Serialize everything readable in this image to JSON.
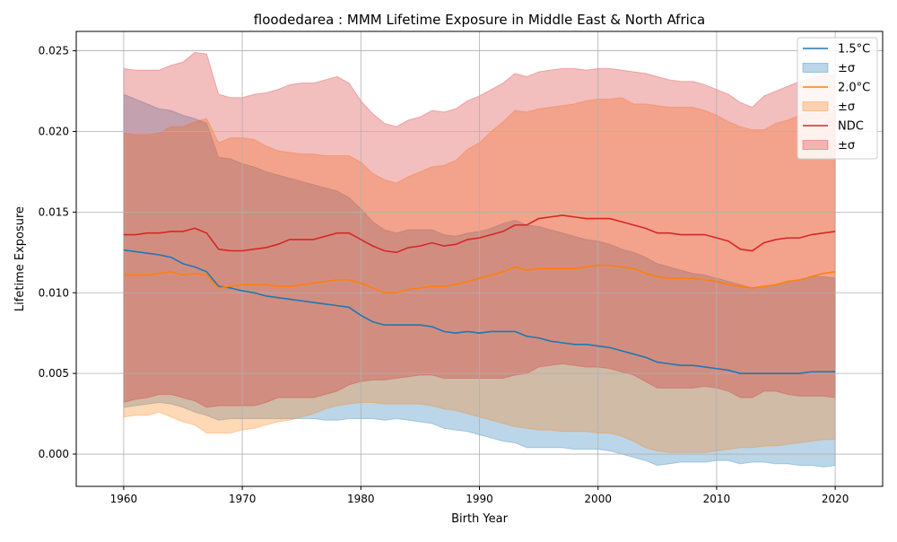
{
  "chart_data": {
    "type": "line",
    "title": "floodedarea : MMM Lifetime Exposure in Middle East & North Africa",
    "xlabel": "Birth Year",
    "ylabel": "Lifetime Exposure",
    "xlim": [
      1956,
      2024
    ],
    "ylim": [
      -0.002,
      0.0262
    ],
    "x_ticks": [
      1960,
      1970,
      1980,
      1990,
      2000,
      2010,
      2020
    ],
    "y_ticks": [
      0.0,
      0.005,
      0.01,
      0.015,
      0.02,
      0.025
    ],
    "y_tick_labels": [
      "0.000",
      "0.005",
      "0.010",
      "0.015",
      "0.020",
      "0.025"
    ],
    "grid": true,
    "legend_position": "top-right",
    "x": [
      1960,
      1961,
      1962,
      1963,
      1964,
      1965,
      1966,
      1967,
      1968,
      1969,
      1970,
      1971,
      1972,
      1973,
      1974,
      1975,
      1976,
      1977,
      1978,
      1979,
      1980,
      1981,
      1982,
      1983,
      1984,
      1985,
      1986,
      1987,
      1988,
      1989,
      1990,
      1991,
      1992,
      1993,
      1994,
      1995,
      1996,
      1997,
      1998,
      1999,
      2000,
      2001,
      2002,
      2003,
      2004,
      2005,
      2006,
      2007,
      2008,
      2009,
      2010,
      2011,
      2012,
      2013,
      2014,
      2015,
      2016,
      2017,
      2018,
      2019,
      2020
    ],
    "series": [
      {
        "name": "1.5°C",
        "band_label": "±σ",
        "color": "#1f77b4",
        "band_color": "#1f77b4",
        "values": [
          0.01265,
          0.01255,
          0.01245,
          0.01235,
          0.0122,
          0.0118,
          0.0116,
          0.0113,
          0.0104,
          0.0103,
          0.01012,
          0.01,
          0.0098,
          0.0097,
          0.0096,
          0.0095,
          0.0094,
          0.0093,
          0.0092,
          0.0091,
          0.0086,
          0.0082,
          0.008,
          0.008,
          0.008,
          0.008,
          0.0079,
          0.0076,
          0.0075,
          0.0076,
          0.0075,
          0.0076,
          0.0076,
          0.0076,
          0.0073,
          0.0072,
          0.007,
          0.0069,
          0.0068,
          0.0068,
          0.0067,
          0.0066,
          0.0064,
          0.0062,
          0.006,
          0.0057,
          0.0056,
          0.0055,
          0.0055,
          0.0054,
          0.0053,
          0.0052,
          0.005,
          0.005,
          0.005,
          0.005,
          0.005,
          0.005,
          0.0051,
          0.0051,
          0.0051
        ],
        "upper": [
          0.0223,
          0.022,
          0.0217,
          0.0214,
          0.0213,
          0.021,
          0.0208,
          0.0205,
          0.0184,
          0.0183,
          0.018,
          0.0178,
          0.0175,
          0.0173,
          0.0171,
          0.0169,
          0.0167,
          0.0165,
          0.0163,
          0.0159,
          0.0152,
          0.0144,
          0.0139,
          0.0137,
          0.0139,
          0.0139,
          0.0139,
          0.0136,
          0.0135,
          0.0137,
          0.0138,
          0.014,
          0.0143,
          0.0145,
          0.0142,
          0.0141,
          0.0139,
          0.0137,
          0.0135,
          0.0133,
          0.0132,
          0.013,
          0.0127,
          0.0125,
          0.0122,
          0.0118,
          0.0116,
          0.0114,
          0.0112,
          0.0111,
          0.0109,
          0.0107,
          0.0105,
          0.0103,
          0.0104,
          0.0105,
          0.0107,
          0.0108,
          0.011,
          0.011,
          0.0109
        ],
        "lower": [
          0.0029,
          0.003,
          0.0031,
          0.0032,
          0.0031,
          0.0029,
          0.0026,
          0.0024,
          0.0021,
          0.0022,
          0.0022,
          0.0022,
          0.0022,
          0.0022,
          0.0022,
          0.0022,
          0.0022,
          0.0021,
          0.0021,
          0.0022,
          0.0022,
          0.0022,
          0.0021,
          0.0022,
          0.0021,
          0.002,
          0.0019,
          0.0016,
          0.0015,
          0.0014,
          0.0012,
          0.001,
          0.0008,
          0.0007,
          0.0004,
          0.0004,
          0.0004,
          0.0004,
          0.0003,
          0.0003,
          0.0003,
          0.0002,
          0.0,
          -0.0002,
          -0.0004,
          -0.0007,
          -0.0006,
          -0.0005,
          -0.0005,
          -0.0005,
          -0.0004,
          -0.0004,
          -0.0006,
          -0.0005,
          -0.0005,
          -0.0006,
          -0.0006,
          -0.0007,
          -0.0007,
          -0.0008,
          -0.0007
        ]
      },
      {
        "name": "2.0°C",
        "band_label": "±σ",
        "color": "#ff7f0e",
        "band_color": "#ff7f0e",
        "values": [
          0.0111,
          0.0111,
          0.0111,
          0.0112,
          0.0113,
          0.0111,
          0.0112,
          0.0111,
          0.0103,
          0.0104,
          0.0105,
          0.0105,
          0.0105,
          0.0104,
          0.0104,
          0.0105,
          0.0106,
          0.0107,
          0.0108,
          0.0108,
          0.0106,
          0.0103,
          0.01,
          0.01,
          0.0102,
          0.0103,
          0.0104,
          0.0104,
          0.0105,
          0.0107,
          0.0109,
          0.0111,
          0.0113,
          0.0116,
          0.0114,
          0.0115,
          0.0115,
          0.0115,
          0.0115,
          0.0116,
          0.0117,
          0.0117,
          0.0116,
          0.0115,
          0.0112,
          0.011,
          0.0109,
          0.0109,
          0.0109,
          0.0108,
          0.0107,
          0.0105,
          0.0104,
          0.0103,
          0.0104,
          0.0105,
          0.0107,
          0.0108,
          0.011,
          0.0112,
          0.0113
        ],
        "upper": [
          0.0199,
          0.0198,
          0.0198,
          0.0199,
          0.0203,
          0.0203,
          0.0206,
          0.0208,
          0.0193,
          0.0196,
          0.0196,
          0.0195,
          0.0191,
          0.0188,
          0.0187,
          0.0186,
          0.0186,
          0.0185,
          0.0185,
          0.0185,
          0.0181,
          0.0174,
          0.017,
          0.0168,
          0.0172,
          0.0175,
          0.0178,
          0.0179,
          0.0182,
          0.0189,
          0.0193,
          0.02,
          0.0206,
          0.0213,
          0.0212,
          0.0214,
          0.0215,
          0.0216,
          0.0217,
          0.0219,
          0.022,
          0.022,
          0.0221,
          0.0217,
          0.0217,
          0.0216,
          0.0215,
          0.0215,
          0.0215,
          0.0213,
          0.021,
          0.0206,
          0.0203,
          0.0201,
          0.0201,
          0.0205,
          0.0207,
          0.021,
          0.0211,
          0.0211,
          0.0211
        ],
        "lower": [
          0.0023,
          0.0024,
          0.0024,
          0.0026,
          0.0023,
          0.002,
          0.0018,
          0.0013,
          0.0013,
          0.0013,
          0.0015,
          0.0016,
          0.0018,
          0.002,
          0.0021,
          0.0023,
          0.0025,
          0.0028,
          0.003,
          0.0031,
          0.0032,
          0.0032,
          0.0031,
          0.0031,
          0.0031,
          0.0031,
          0.003,
          0.0028,
          0.0027,
          0.0025,
          0.0023,
          0.0021,
          0.0019,
          0.0017,
          0.0016,
          0.0015,
          0.0015,
          0.0014,
          0.0014,
          0.0014,
          0.0013,
          0.0013,
          0.0011,
          0.0008,
          0.0004,
          0.0002,
          0.0001,
          0.0001,
          0.0001,
          0.0001,
          0.0002,
          0.0003,
          0.0004,
          0.0004,
          0.0005,
          0.0005,
          0.0006,
          0.0007,
          0.0008,
          0.0009,
          0.0009
        ]
      },
      {
        "name": "NDC",
        "band_label": "±σ",
        "color": "#d62728",
        "band_color": "#d62728",
        "values": [
          0.0136,
          0.0136,
          0.0137,
          0.0137,
          0.0138,
          0.0138,
          0.014,
          0.0137,
          0.0127,
          0.0126,
          0.0126,
          0.0127,
          0.0128,
          0.013,
          0.0133,
          0.0133,
          0.0133,
          0.0135,
          0.0137,
          0.0137,
          0.0133,
          0.0129,
          0.0126,
          0.0125,
          0.0128,
          0.0129,
          0.0131,
          0.0129,
          0.013,
          0.0133,
          0.0134,
          0.0136,
          0.0138,
          0.0142,
          0.0142,
          0.0146,
          0.0147,
          0.0148,
          0.0147,
          0.0146,
          0.0146,
          0.0146,
          0.0144,
          0.0142,
          0.014,
          0.0137,
          0.0137,
          0.0136,
          0.0136,
          0.0136,
          0.0134,
          0.0132,
          0.0127,
          0.0126,
          0.0131,
          0.0133,
          0.0134,
          0.0134,
          0.0136,
          0.0137,
          0.0138
        ],
        "upper": [
          0.0239,
          0.0238,
          0.0238,
          0.0238,
          0.0241,
          0.0243,
          0.0249,
          0.0248,
          0.0223,
          0.0221,
          0.0221,
          0.0223,
          0.0224,
          0.0226,
          0.0229,
          0.023,
          0.023,
          0.0232,
          0.0234,
          0.023,
          0.0219,
          0.0211,
          0.0205,
          0.0203,
          0.0207,
          0.0209,
          0.0213,
          0.0212,
          0.0214,
          0.0219,
          0.0222,
          0.0226,
          0.023,
          0.0236,
          0.0234,
          0.0237,
          0.0238,
          0.0239,
          0.0239,
          0.0238,
          0.0239,
          0.0239,
          0.0238,
          0.0237,
          0.0236,
          0.0234,
          0.0232,
          0.0231,
          0.0231,
          0.0229,
          0.0226,
          0.0223,
          0.0218,
          0.0215,
          0.0222,
          0.0225,
          0.0228,
          0.0231,
          0.0233,
          0.0235,
          0.0235
        ],
        "lower": [
          0.0032,
          0.0034,
          0.0035,
          0.0037,
          0.0037,
          0.0035,
          0.0033,
          0.0029,
          0.003,
          0.003,
          0.003,
          0.003,
          0.0032,
          0.0035,
          0.0035,
          0.0035,
          0.0035,
          0.0037,
          0.0039,
          0.0043,
          0.0045,
          0.0046,
          0.0046,
          0.0047,
          0.0048,
          0.0049,
          0.0049,
          0.0047,
          0.0047,
          0.0047,
          0.0047,
          0.0047,
          0.0047,
          0.0049,
          0.005,
          0.0054,
          0.0055,
          0.0056,
          0.0055,
          0.0054,
          0.0054,
          0.0053,
          0.0051,
          0.0049,
          0.0045,
          0.0041,
          0.0041,
          0.0041,
          0.0041,
          0.0042,
          0.0041,
          0.0039,
          0.0035,
          0.0035,
          0.0039,
          0.0039,
          0.0037,
          0.0036,
          0.0036,
          0.0036,
          0.0035
        ]
      }
    ]
  }
}
